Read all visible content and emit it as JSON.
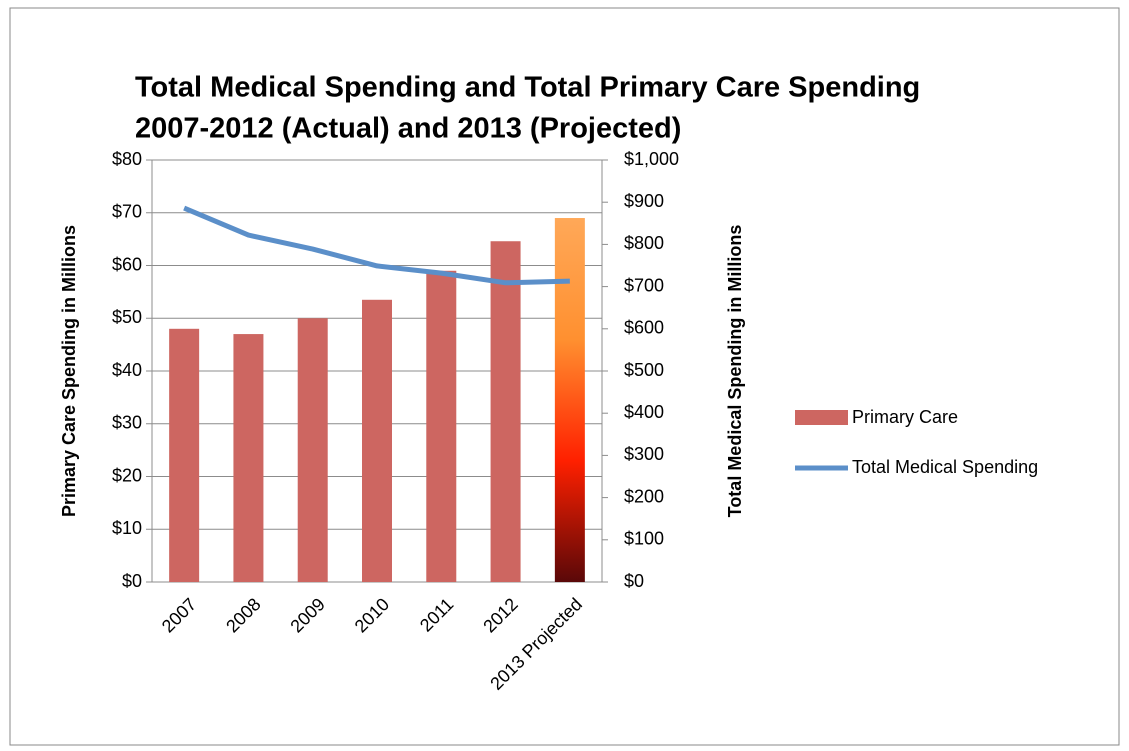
{
  "chart_data": {
    "type": "combo",
    "title": [
      "Total Medical Spending and Total Primary Care Spending",
      "2007-2012 (Actual) and 2013 (Projected)"
    ],
    "categories": [
      "2007",
      "2008",
      "2009",
      "2010",
      "2011",
      "2012",
      "2013 Projected"
    ],
    "series": [
      {
        "name": "Primary Care",
        "type": "bar",
        "axis": "y",
        "color": "#cd6661",
        "point_fills": [
          "#cd6661",
          "#cd6661",
          "#cd6661",
          "#cd6661",
          "#cd6661",
          "#cd6661",
          [
            "#5a0808",
            "#ff2000",
            "#ff9030",
            "#ffa858"
          ]
        ],
        "values": [
          48,
          47,
          50,
          53.5,
          59,
          64.6,
          69
        ]
      },
      {
        "name": "Total Medical Spending",
        "type": "line",
        "axis": "y2",
        "color": "#5b8fc9",
        "values": [
          886,
          822,
          789,
          749,
          732,
          709,
          713
        ]
      }
    ],
    "ylabel": "Primary Care Spending in Millions",
    "y2label": "Total Medical Spending in Millions",
    "ylim": [
      0,
      80
    ],
    "yticks": [
      {
        "value": 0,
        "label": "$0"
      },
      {
        "value": 10,
        "label": "$10"
      },
      {
        "value": 20,
        "label": "$20"
      },
      {
        "value": 30,
        "label": "$30"
      },
      {
        "value": 40,
        "label": "$40"
      },
      {
        "value": 50,
        "label": "$50"
      },
      {
        "value": 60,
        "label": "$60"
      },
      {
        "value": 70,
        "label": "$70"
      },
      {
        "value": 80,
        "label": "$80"
      }
    ],
    "y2lim": [
      0,
      1000
    ],
    "y2ticks": [
      {
        "value": 0,
        "label": "$0"
      },
      {
        "value": 100,
        "label": "$100"
      },
      {
        "value": 200,
        "label": "$200"
      },
      {
        "value": 300,
        "label": "$300"
      },
      {
        "value": 400,
        "label": "$400"
      },
      {
        "value": 500,
        "label": "$500"
      },
      {
        "value": 600,
        "label": "$600"
      },
      {
        "value": 700,
        "label": "$700"
      },
      {
        "value": 800,
        "label": "$800"
      },
      {
        "value": 900,
        "label": "$900"
      },
      {
        "value": 1000,
        "label": "$1,000"
      }
    ],
    "grid": true,
    "legend": "right"
  }
}
